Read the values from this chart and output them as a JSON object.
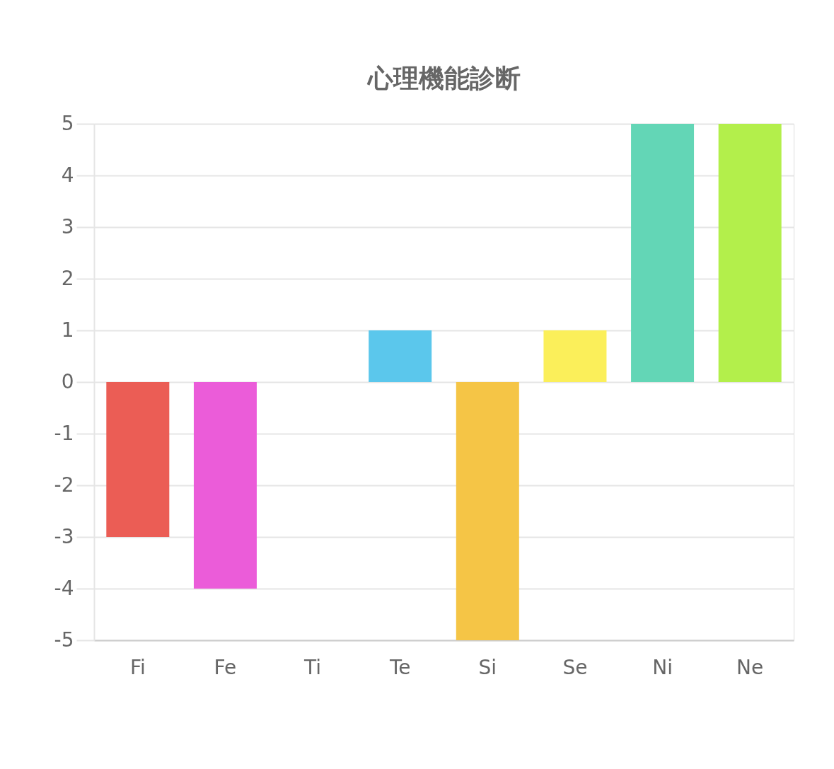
{
  "chart_data": {
    "type": "bar",
    "title": "心理機能診断",
    "categories": [
      "Fi",
      "Fe",
      "Ti",
      "Te",
      "Si",
      "Se",
      "Ni",
      "Ne"
    ],
    "values": [
      -3,
      -4,
      0,
      1,
      -5,
      1,
      5,
      5
    ],
    "colors": [
      "#eb5d55",
      "#eb5cd9",
      null,
      "#5bc7ec",
      "#f5c546",
      "#fbef5a",
      "#63d6b6",
      "#b3ef4b"
    ],
    "ylim": [
      -5,
      5
    ],
    "yticks": [
      -5,
      -4,
      -3,
      -2,
      -1,
      0,
      1,
      2,
      3,
      4,
      5
    ],
    "grid": "y"
  }
}
